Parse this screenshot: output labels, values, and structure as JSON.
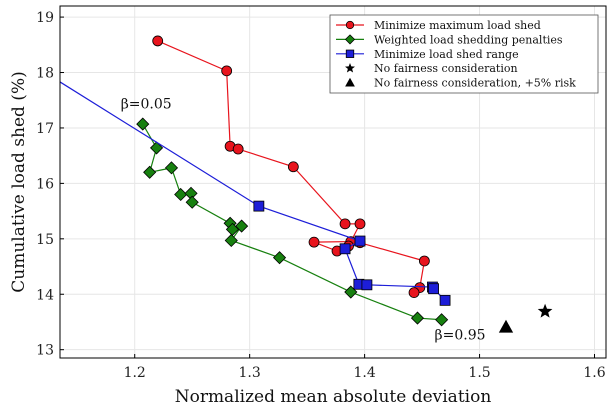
{
  "chart_data": {
    "type": "scatter",
    "xlabel": "Normalized mean absolute deviation",
    "ylabel": "Cumulative load shed (%)",
    "xlim": [
      1.135,
      1.61
    ],
    "ylim": [
      12.85,
      19.2
    ],
    "xticks": [
      "1.2",
      "1.3",
      "1.4",
      "1.5",
      "1.6"
    ],
    "xtick_values": [
      1.2,
      1.3,
      1.4,
      1.5,
      1.6
    ],
    "yticks": [
      "13",
      "14",
      "15",
      "16",
      "17",
      "18",
      "19"
    ],
    "ytick_values": [
      13,
      14,
      15,
      16,
      17,
      18,
      19
    ],
    "grid": true,
    "legend_position": "top-right",
    "annotations": [
      {
        "text": "β=0.05",
        "x": 1.21,
        "y": 17.35
      },
      {
        "text": "β=0.95",
        "x": 1.483,
        "y": 13.18
      }
    ],
    "series": [
      {
        "name": "Minimize maximum load shed",
        "color": "#e8141d",
        "marker": "circle",
        "points": [
          [
            1.22,
            18.57
          ],
          [
            1.28,
            18.03
          ],
          [
            1.283,
            16.67
          ],
          [
            1.29,
            16.62
          ],
          [
            1.338,
            16.3
          ],
          [
            1.383,
            15.27
          ],
          [
            1.396,
            15.27
          ],
          [
            1.388,
            14.95
          ],
          [
            1.356,
            14.94
          ],
          [
            1.376,
            14.78
          ],
          [
            1.386,
            14.87
          ],
          [
            1.396,
            14.93
          ],
          [
            1.452,
            14.6
          ],
          [
            1.448,
            14.12
          ],
          [
            1.443,
            14.03
          ]
        ]
      },
      {
        "name": "Weighted load shedding penalties",
        "color": "#17800f",
        "marker": "diamond",
        "points": [
          [
            1.207,
            17.07
          ],
          [
            1.219,
            16.64
          ],
          [
            1.213,
            16.2
          ],
          [
            1.232,
            16.28
          ],
          [
            1.24,
            15.8
          ],
          [
            1.249,
            15.82
          ],
          [
            1.25,
            15.66
          ],
          [
            1.283,
            15.28
          ],
          [
            1.285,
            15.17
          ],
          [
            1.293,
            15.23
          ],
          [
            1.284,
            14.97
          ],
          [
            1.326,
            14.66
          ],
          [
            1.388,
            14.04
          ],
          [
            1.446,
            13.57
          ],
          [
            1.467,
            13.54
          ]
        ]
      },
      {
        "name": "Minimize load shed range",
        "color": "#1d1ed8",
        "marker": "square",
        "line_start": [
          1.135,
          17.83
        ],
        "points": [
          [
            1.308,
            15.59
          ],
          [
            1.396,
            14.96
          ],
          [
            1.383,
            14.82
          ],
          [
            1.395,
            14.18
          ],
          [
            1.402,
            14.17
          ],
          [
            1.459,
            14.13
          ],
          [
            1.46,
            14.1
          ],
          [
            1.47,
            13.89
          ]
        ]
      },
      {
        "name": "No fairness consideration",
        "color": "#000000",
        "marker": "star",
        "points": [
          [
            1.557,
            13.69
          ]
        ]
      },
      {
        "name": "No fairness consideration, +5% risk",
        "color": "#000000",
        "marker": "triangle",
        "points": [
          [
            1.523,
            13.41
          ]
        ]
      }
    ]
  }
}
